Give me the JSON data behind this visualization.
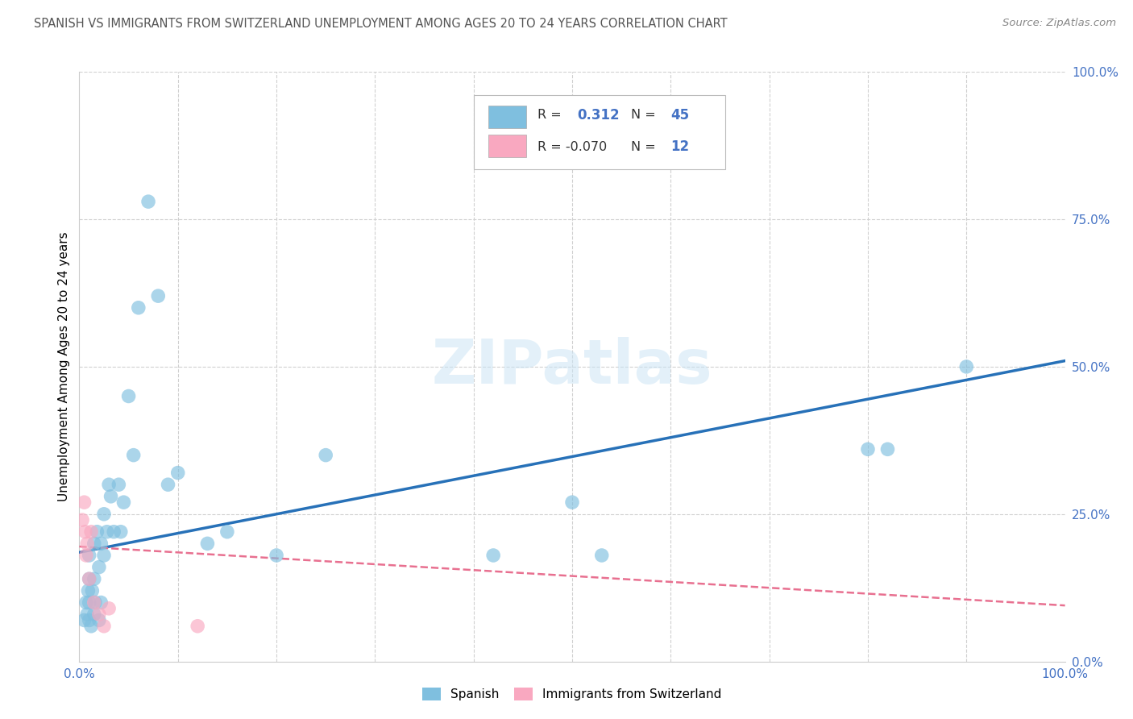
{
  "title": "SPANISH VS IMMIGRANTS FROM SWITZERLAND UNEMPLOYMENT AMONG AGES 20 TO 24 YEARS CORRELATION CHART",
  "source": "Source: ZipAtlas.com",
  "ylabel": "Unemployment Among Ages 20 to 24 years",
  "xlim": [
    0,
    1.0
  ],
  "ylim": [
    0,
    1.0
  ],
  "watermark": "ZIPatlas",
  "label_spanish": "Spanish",
  "label_swiss": "Immigrants from Switzerland",
  "blue_color": "#7fbfdf",
  "pink_color": "#f9a8c0",
  "trendline_blue": "#2771b8",
  "trendline_pink": "#e87090",
  "blue_x": [
    0.005,
    0.007,
    0.008,
    0.009,
    0.01,
    0.01,
    0.01,
    0.01,
    0.012,
    0.013,
    0.015,
    0.015,
    0.015,
    0.016,
    0.018,
    0.02,
    0.02,
    0.022,
    0.022,
    0.025,
    0.025,
    0.028,
    0.03,
    0.032,
    0.035,
    0.04,
    0.042,
    0.045,
    0.05,
    0.055,
    0.06,
    0.07,
    0.08,
    0.09,
    0.1,
    0.13,
    0.15,
    0.2,
    0.25,
    0.42,
    0.5,
    0.53,
    0.8,
    0.82,
    0.9
  ],
  "blue_y": [
    0.07,
    0.1,
    0.08,
    0.12,
    0.07,
    0.1,
    0.14,
    0.18,
    0.06,
    0.12,
    0.08,
    0.14,
    0.2,
    0.1,
    0.22,
    0.07,
    0.16,
    0.1,
    0.2,
    0.18,
    0.25,
    0.22,
    0.3,
    0.28,
    0.22,
    0.3,
    0.22,
    0.27,
    0.45,
    0.35,
    0.6,
    0.78,
    0.62,
    0.3,
    0.32,
    0.2,
    0.22,
    0.18,
    0.35,
    0.18,
    0.27,
    0.18,
    0.36,
    0.36,
    0.5
  ],
  "pink_x": [
    0.003,
    0.005,
    0.006,
    0.007,
    0.008,
    0.01,
    0.012,
    0.015,
    0.02,
    0.025,
    0.03,
    0.12
  ],
  "pink_y": [
    0.24,
    0.27,
    0.22,
    0.18,
    0.2,
    0.14,
    0.22,
    0.1,
    0.08,
    0.06,
    0.09,
    0.06
  ],
  "blue_trend_x": [
    0.0,
    1.0
  ],
  "blue_trend_y": [
    0.185,
    0.51
  ],
  "pink_trend_x": [
    0.0,
    1.0
  ],
  "pink_trend_y": [
    0.195,
    0.095
  ],
  "background_color": "#ffffff",
  "grid_color": "#d0d0d0",
  "title_color": "#555555",
  "axis_color": "#4472c4",
  "legend_r1_text": "R = ",
  "legend_v1": "0.312",
  "legend_n1": "45",
  "legend_r2_text": "R = -0.070",
  "legend_n2": "12"
}
